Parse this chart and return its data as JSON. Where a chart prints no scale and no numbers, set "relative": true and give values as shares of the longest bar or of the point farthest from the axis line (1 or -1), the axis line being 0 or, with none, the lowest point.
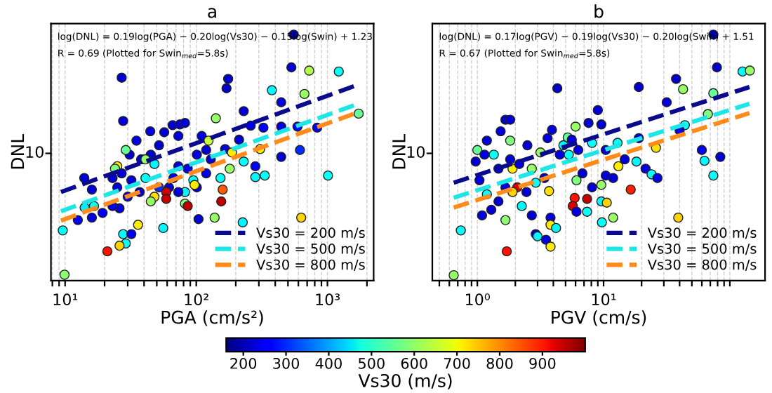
{
  "chart_data": [
    {
      "type": "scatter",
      "title": "a",
      "xlabel": "PGA (cm/s²)",
      "ylabel": "DNL",
      "log": "x",
      "grid": "x",
      "legend": "bottom right",
      "marker": "circle",
      "relative": true,
      "xlim": [
        7.8,
        2250
      ],
      "xticks": [
        {
          "value": 8,
          "label": null
        },
        {
          "value": 9,
          "label": null
        },
        {
          "value": 10,
          "label": "10¹"
        },
        {
          "value": 20,
          "label": null
        },
        {
          "value": 30,
          "label": null
        },
        {
          "value": 40,
          "label": null
        },
        {
          "value": 50,
          "label": null
        },
        {
          "value": 60,
          "label": null
        },
        {
          "value": 70,
          "label": null
        },
        {
          "value": 80,
          "label": null
        },
        {
          "value": 90,
          "label": null
        },
        {
          "value": 100,
          "label": "10²"
        },
        {
          "value": 200,
          "label": null
        },
        {
          "value": 300,
          "label": null
        },
        {
          "value": 400,
          "label": null
        },
        {
          "value": 500,
          "label": null
        },
        {
          "value": 600,
          "label": null
        },
        {
          "value": 700,
          "label": null
        },
        {
          "value": 800,
          "label": null
        },
        {
          "value": 900,
          "label": null
        },
        {
          "value": 1000,
          "label": "10³"
        },
        {
          "value": 2000,
          "label": null
        }
      ],
      "clabel": "Vs30 (m/s)",
      "clim": [
        160,
        1000
      ],
      "cticks": [
        200,
        300,
        400,
        500,
        600,
        700,
        800,
        900
      ],
      "annotations": [
        "log(DNL) = 0.19log(PGA) − 0.20log(Vs30) − 0.15log(Swin) + 1.23",
        "R = 0.69 (Plotted for Swin$_{med}$=5.8s)",
        "10"
      ],
      "series": [
        {
          "x": [
            553,
            531,
            726,
            1220,
            377,
            668,
            444,
            175,
            170,
            230,
            141,
            27.7,
            44.6,
            57,
            66,
            75,
            82,
            73,
            35,
            52,
            110,
            124,
            212,
            260,
            325,
            444,
            591,
            835,
            1730,
            1010,
            617,
            444,
            307,
            230,
            282,
            282,
            333,
            166,
            187,
            180,
            153,
            159,
            155,
            138,
            226,
            631,
            101,
            95,
            86,
            73,
            67,
            62,
            82,
            82,
            86,
            104,
            59,
            59,
            48,
            45,
            52,
            41,
            45,
            38,
            31,
            29,
            25,
            24,
            27,
            23,
            25,
            32,
            30,
            37,
            26,
            23,
            19.3,
            16,
            14,
            16,
            16.6,
            14.1,
            12.5,
            27.7,
            32,
            29,
            26,
            36,
            56,
            21,
            9.6,
            9.9,
            27,
            119,
            101,
            129,
            119,
            41,
            48,
            97,
            73
          ],
          "values": [
            1.0,
            0.867,
            0.854,
            0.85,
            0.774,
            0.759,
            0.725,
            0.82,
            0.782,
            0.689,
            0.66,
            0.649,
            0.607,
            0.603,
            0.632,
            0.635,
            0.641,
            0.588,
            0.569,
            0.55,
            0.588,
            0.569,
            0.573,
            0.63,
            0.622,
            0.626,
            0.626,
            0.622,
            0.679,
            0.427,
            0.531,
            0.503,
            0.535,
            0.484,
            0.465,
            0.421,
            0.427,
            0.535,
            0.521,
            0.455,
            0.417,
            0.37,
            0.322,
            0.256,
            0.237,
            0.256,
            0.379,
            0.408,
            0.455,
            0.465,
            0.417,
            0.379,
            0.36,
            0.313,
            0.303,
            0.25,
            0.36,
            0.332,
            0.341,
            0.322,
            0.379,
            0.417,
            0.512,
            0.493,
            0.512,
            0.531,
            0.465,
            0.455,
            0.436,
            0.417,
            0.379,
            0.408,
            0.341,
            0.36,
            0.294,
            0.303,
            0.275,
            0.256,
            0.417,
            0.37,
            0.303,
            0.297,
            0.246,
            0.189,
            0.189,
            0.151,
            0.142,
            0.227,
            0.214,
            0.119,
            0.204,
            0.024,
            0.825,
            0.531,
            0.512,
            0.493,
            0.436,
            0.493,
            0.474,
            0.389,
            0.36
          ],
          "colors": [
            "#0000b0",
            "#0000d4",
            "#b0ff4f",
            "#06fff9",
            "#00f9ff",
            "#98ff67",
            "#0000e1",
            "#0000c8",
            "#0000c8",
            "#0000d4",
            "#98ff67",
            "#0000d4",
            "#0000e1",
            "#0000d4",
            "#0000d4",
            "#0000d4",
            "#0000d4",
            "#0000e1",
            "#0000e1",
            "#0000d4",
            "#0000e1",
            "#c8ff37",
            "#0000d4",
            "#0000e1",
            "#0000f9",
            "#0000e1",
            "#0000f9",
            "#0000f9",
            "#67ff98",
            "#06fff9",
            "#002bff",
            "#0000d4",
            "#ffed00",
            "#06fff9",
            "#0000f9",
            "#00f9ff",
            "#06fff9",
            "#0000d4",
            "#ffed00",
            "#98ff67",
            "#06fff9",
            "#ff5b00",
            "#bc0000",
            "#98ff67",
            "#00f9ff",
            "#ffd400",
            "#0000d4",
            "#06fff9",
            "#0000e1",
            "#0000e1",
            "#0000f9",
            "#0000d4",
            "#00f9ff",
            "#80ff80",
            "#bc0000",
            "#0000d4",
            "#d40000",
            "#c80000",
            "#ffe100",
            "#98ff67",
            "#002bff",
            "#06fff9",
            "#0000d4",
            "#0000d4",
            "#0000d4",
            "#67ff98",
            "#ffed00",
            "#80ff80",
            "#0000d4",
            "#0000d4",
            "#0000d4",
            "#0000d4",
            "#0000e1",
            "#0000d4",
            "#0000e1",
            "#0000e1",
            "#0000f9",
            "#0000e1",
            "#0000d4",
            "#0000d4",
            "#06fff9",
            "#00edff",
            "#0000ed",
            "#00f9ff",
            "#0000ed",
            "#06fff9",
            "#ffd400",
            "#ffed00",
            "#00f9ff",
            "#ff1200",
            "#06fff9",
            "#8cff73",
            "#0000d4",
            "#0000d4",
            "#0000e1",
            "#0000d4",
            "#0000e1",
            "#98ff67",
            "#00f9ff",
            "#ffed00",
            "#0000e1"
          ]
        },
        {
          "type": "line",
          "name": "Vs30 = 200 m/s",
          "color": "#0a0a8c",
          "line_style": "dashed",
          "marker": "none",
          "x": [
            9.3,
            1720
          ],
          "values": [
            0.36,
            0.797
          ]
        },
        {
          "type": "line",
          "name": "Vs30 = 500 m/s",
          "color": "#1ee6e6",
          "line_style": "dashed",
          "marker": "none",
          "x": [
            9.3,
            1720
          ],
          "values": [
            0.282,
            0.719
          ]
        },
        {
          "type": "line",
          "name": "Vs30 = 800 m/s",
          "color": "#ff8c1a",
          "line_style": "dashed",
          "marker": "none",
          "x": [
            9.3,
            1720
          ],
          "values": [
            0.244,
            0.685
          ]
        }
      ]
    },
    {
      "type": "scatter",
      "title": "b",
      "xlabel": "PGV (cm/s)",
      "ylabel": "DNL",
      "log": "x",
      "grid": "x",
      "legend": "bottom right",
      "marker": "circle",
      "relative": true,
      "xlim": [
        0.44,
        190
      ],
      "xticks": [
        {
          "value": 0.5,
          "label": null
        },
        {
          "value": 0.6,
          "label": null
        },
        {
          "value": 0.7,
          "label": null
        },
        {
          "value": 0.8,
          "label": null
        },
        {
          "value": 0.9,
          "label": null
        },
        {
          "value": 1,
          "label": "10⁰"
        },
        {
          "value": 2,
          "label": null
        },
        {
          "value": 3,
          "label": null
        },
        {
          "value": 4,
          "label": null
        },
        {
          "value": 5,
          "label": null
        },
        {
          "value": 6,
          "label": null
        },
        {
          "value": 7,
          "label": null
        },
        {
          "value": 8,
          "label": null
        },
        {
          "value": 9,
          "label": null
        },
        {
          "value": 10,
          "label": "10¹"
        },
        {
          "value": 20,
          "label": null
        },
        {
          "value": 30,
          "label": null
        },
        {
          "value": 40,
          "label": null
        },
        {
          "value": 50,
          "label": null
        },
        {
          "value": 60,
          "label": null
        },
        {
          "value": 70,
          "label": null
        },
        {
          "value": 80,
          "label": null
        },
        {
          "value": 90,
          "label": null
        },
        {
          "value": 100,
          "label": null
        }
      ],
      "annotations": [
        "log(DNL) = 0.17log(PGV) − 0.19log(Vs30) − 0.20log(Swin) + 1.51",
        "R = 0.67 (Plotted for Swin$_{med}$=5.8s)",
        "10"
      ],
      "series": [
        {
          "x": [
            74,
            79,
            126,
            144,
            37.5,
            42.6,
            31.6,
            74,
            67,
            19,
            4.3,
            9.0,
            9.6,
            6.0,
            5.2,
            7.6,
            3.9,
            5.6,
            1.67,
            1.82,
            1.53,
            1.19,
            1.0,
            1.82,
            2.49,
            3.16,
            4.5,
            8.1,
            12.9,
            19,
            26,
            60,
            84,
            63,
            74,
            18.2,
            21.5,
            24,
            26.7,
            13.1,
            10.4,
            11.9,
            16.4,
            9.6,
            8.1,
            6.8,
            6.1,
            7.4,
            9.6,
            10.6,
            11.9,
            9.7,
            5.9,
            5.7,
            6.1,
            7.4,
            39,
            3.7,
            3.8,
            3.8,
            4.2,
            2.9,
            3.0,
            3.5,
            3.8,
            2.7,
            2.25,
            2.45,
            2.07,
            1.9,
            1.67,
            1.47,
            1.29,
            1.09,
            1.19,
            1.04,
            0.97,
            1.14,
            1.35,
            1.82,
            1.47,
            1.9,
            2.15,
            2.7,
            3.4,
            2.9,
            0.74,
            0.65,
            1.71,
            1.67,
            14.7,
            10.4,
            6.3,
            5.3,
            44,
            40,
            4.8,
            3.6
          ],
          "values": [
            1.0,
            0.867,
            0.85,
            0.854,
            0.82,
            0.778,
            0.725,
            0.762,
            0.677,
            0.787,
            0.782,
            0.693,
            0.635,
            0.626,
            0.582,
            0.641,
            0.613,
            0.573,
            0.654,
            0.654,
            0.607,
            0.569,
            0.531,
            0.569,
            0.55,
            0.521,
            0.512,
            0.56,
            0.56,
            0.579,
            0.54,
            0.531,
            0.503,
            0.487,
            0.427,
            0.484,
            0.455,
            0.432,
            0.417,
            0.465,
            0.427,
            0.417,
            0.37,
            0.389,
            0.379,
            0.436,
            0.408,
            0.332,
            0.322,
            0.317,
            0.256,
            0.237,
            0.336,
            0.303,
            0.28,
            0.28,
            0.256,
            0.364,
            0.256,
            0.227,
            0.214,
            0.189,
            0.18,
            0.166,
            0.138,
            0.265,
            0.303,
            0.36,
            0.379,
            0.36,
            0.379,
            0.322,
            0.288,
            0.265,
            0.351,
            0.408,
            0.484,
            0.512,
            0.512,
            0.493,
            0.455,
            0.455,
            0.474,
            0.455,
            0.417,
            0.398,
            0.204,
            0.022,
            0.119,
            0.246,
            0.493,
            0.531,
            0.531,
            0.512,
            0.632,
            0.611,
            0.55,
            0.579
          ],
          "colors": [
            "#0000b0",
            "#0000c8",
            "#06fff9",
            "#98ff67",
            "#0000c8",
            "#98ff67",
            "#0000e1",
            "#67ff98",
            "#80ff80",
            "#0000c8",
            "#0000c8",
            "#0000d4",
            "#0000d4",
            "#98ff67",
            "#67ff98",
            "#0000d4",
            "#0000e1",
            "#0000e1",
            "#0000d4",
            "#0000d4",
            "#0000d4",
            "#0000d4",
            "#67ff98",
            "#80ff80",
            "#0000d4",
            "#98ff67",
            "#0000e1",
            "#06fff9",
            "#06fff9",
            "#0000e1",
            "#ffe100",
            "#0000ed",
            "#0000d4",
            "#00f9ff",
            "#06fff9",
            "#00f9ff",
            "#0000e1",
            "#06fff9",
            "#0000ed",
            "#ffed00",
            "#0000e1",
            "#0000d4",
            "#ff1e00",
            "#98ff67",
            "#0000d4",
            "#0000d4",
            "#80ff80",
            "#c80000",
            "#00f9ff",
            "#ffd400",
            "#98ff67",
            "#06fff9",
            "#ff1200",
            "#d40000",
            "#0000e1",
            "#06fff9",
            "#ffd400",
            "#ffe100",
            "#0000e1",
            "#ffed00",
            "#00f9ff",
            "#0000d4",
            "#00f9ff",
            "#0000e1",
            "#ffed00",
            "#0000d4",
            "#00f9ff",
            "#0000d4",
            "#d40000",
            "#ffd400",
            "#0000e1",
            "#0000d4",
            "#0000d4",
            "#0000e1",
            "#06fff9",
            "#0000d4",
            "#0000d4",
            "#0000e1",
            "#06fff9",
            "#0000d4",
            "#0000d4",
            "#ffed00",
            "#0000e1",
            "#98ff67",
            "#0000d4",
            "#06fff9",
            "#06fff9",
            "#98ff67",
            "#ff1200",
            "#8cff73",
            "#0000d4",
            "#0000d4",
            "#0000e1",
            "#06fff9",
            "#06fff9",
            "#0000e1",
            "#00f9ff",
            "#0000e1"
          ]
        },
        {
          "type": "line",
          "name": "Vs30 = 200 m/s",
          "color": "#0a0a8c",
          "line_style": "dashed",
          "marker": "none",
          "x": [
            0.65,
            143
          ],
          "values": [
            0.398,
            0.787
          ]
        },
        {
          "type": "line",
          "name": "Vs30 = 500 m/s",
          "color": "#1ee6e6",
          "line_style": "dashed",
          "marker": "none",
          "x": [
            0.65,
            143
          ],
          "values": [
            0.337,
            0.719
          ]
        },
        {
          "type": "line",
          "name": "Vs30 = 800 m/s",
          "color": "#ff8c1a",
          "line_style": "dashed",
          "marker": "none",
          "x": [
            0.65,
            143
          ],
          "values": [
            0.297,
            0.681
          ]
        }
      ]
    }
  ]
}
